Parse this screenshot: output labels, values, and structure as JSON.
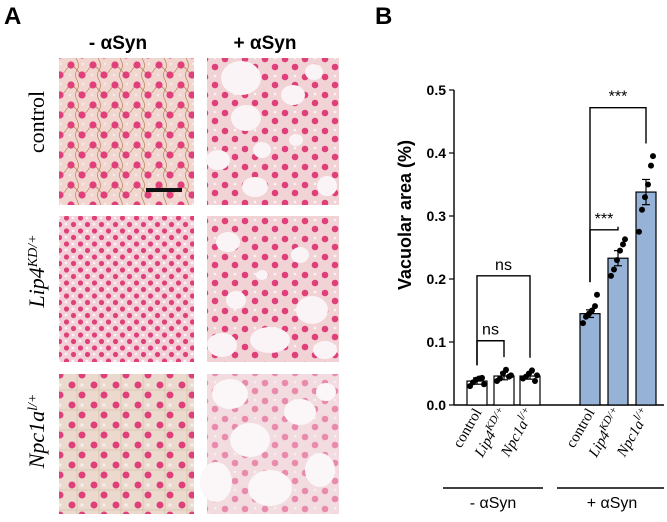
{
  "panels": {
    "a_letter": "A",
    "b_letter": "B"
  },
  "micrographs": {
    "col_minus": "- αSyn",
    "col_plus": "+ αSyn",
    "row_control": "control",
    "row_lip4_main": "Lip4",
    "row_lip4_sup": "KD/+",
    "row_npc_main": "Npc1a",
    "row_npc_sup": "l/+",
    "colors": {
      "tissue": "#f1d6cf",
      "nuclei": "#e0407a",
      "vacuole": "#fbf4f6",
      "mesh": "#a8683a"
    }
  },
  "chart_data": {
    "type": "bar",
    "ylabel": "Vacuolar area (%)",
    "ylim": [
      0,
      0.5
    ],
    "yticks": [
      "0.0",
      "0.1",
      "0.2",
      "0.3",
      "0.4",
      "0.5"
    ],
    "groups": [
      "- αSyn",
      "+ αSyn"
    ],
    "categories": [
      {
        "main": "control",
        "sup": ""
      },
      {
        "main": "Lip4",
        "sup": "KD/+"
      },
      {
        "main": "Npc1a",
        "sup": "l/+"
      },
      {
        "main": "control",
        "sup": ""
      },
      {
        "main": "Lip4",
        "sup": "KD/+"
      },
      {
        "main": "Npc1a",
        "sup": "l/+"
      }
    ],
    "values": [
      0.038,
      0.046,
      0.046,
      0.145,
      0.233,
      0.338
    ],
    "sem": [
      0.005,
      0.006,
      0.005,
      0.006,
      0.012,
      0.02
    ],
    "points": [
      [
        0.03,
        0.036,
        0.04,
        0.042,
        0.043,
        0.033
      ],
      [
        0.038,
        0.042,
        0.05,
        0.056,
        0.045,
        0.047
      ],
      [
        0.042,
        0.045,
        0.05,
        0.055,
        0.038,
        0.047
      ],
      [
        0.13,
        0.14,
        0.145,
        0.15,
        0.157,
        0.175
      ],
      [
        0.205,
        0.215,
        0.23,
        0.245,
        0.255,
        0.263
      ],
      [
        0.275,
        0.31,
        0.33,
        0.35,
        0.38,
        0.395
      ]
    ],
    "bar_colors": [
      "#ffffff",
      "#ffffff",
      "#ffffff",
      "#96b2d6",
      "#96b2d6",
      "#96b2d6"
    ],
    "comparisons": [
      {
        "from": 0,
        "to": 1,
        "label": "ns"
      },
      {
        "from": 0,
        "to": 2,
        "label": "ns"
      },
      {
        "from": 3,
        "to": 4,
        "label": "***"
      },
      {
        "from": 3,
        "to": 5,
        "label": "***"
      }
    ]
  }
}
